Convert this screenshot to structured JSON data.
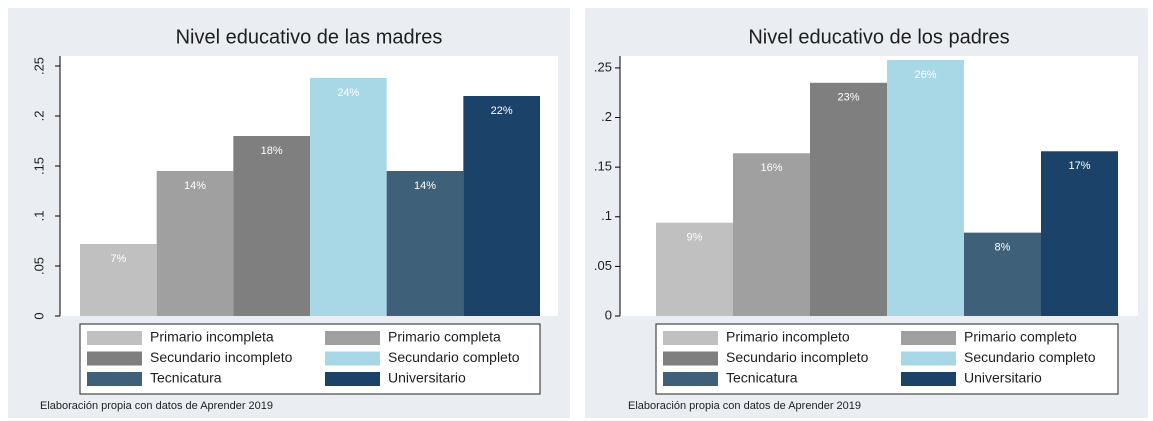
{
  "chart_data": [
    {
      "type": "bar",
      "title": "Nivel educativo de las madres",
      "categories": [
        "Primario incompleta",
        "Primario completa",
        "Secundario incompleto",
        "Secundario completo",
        "Tecnicatura",
        "Universitario"
      ],
      "values": [
        0.072,
        0.145,
        0.18,
        0.238,
        0.145,
        0.22
      ],
      "value_labels": [
        "7%",
        "14%",
        "18%",
        "24%",
        "14%",
        "22%"
      ],
      "colors": [
        "#c0c0c0",
        "#a0a0a0",
        "#7f7f7f",
        "#a8d8e6",
        "#3e6079",
        "#1b4269"
      ],
      "ylim": [
        0,
        0.26
      ],
      "yticks": [
        0,
        {
          "value": 0.05,
          "label": ".05"
        },
        {
          "value": 0.1,
          "label": ".1"
        },
        {
          "value": 0.15,
          "label": ".15"
        },
        {
          "value": 0.2,
          "label": ".2"
        },
        {
          "value": 0.25,
          "label": ".25"
        }
      ],
      "note": "Elaboración propia con datos de Aprender 2019"
    },
    {
      "type": "bar",
      "title": "Nivel educativo de los padres",
      "categories": [
        "Primario incompleto",
        "Primario completo",
        "Secundario incompleto",
        "Secundario completo",
        "Tecnicatura",
        "Universitario"
      ],
      "values": [
        0.094,
        0.164,
        0.235,
        0.258,
        0.084,
        0.166
      ],
      "value_labels": [
        "9%",
        "16%",
        "23%",
        "26%",
        "8%",
        "17%"
      ],
      "colors": [
        "#c0c0c0",
        "#a0a0a0",
        "#7f7f7f",
        "#a8d8e6",
        "#3e6079",
        "#1b4269"
      ],
      "ylim": [
        0,
        0.262
      ],
      "yticks": [
        0,
        {
          "value": 0.05,
          "label": ".05"
        },
        {
          "value": 0.1,
          "label": ".1"
        },
        {
          "value": 0.15,
          "label": ".15"
        },
        {
          "value": 0.2,
          "label": ".2"
        },
        {
          "value": 0.25,
          "label": ".25"
        }
      ],
      "note": "Elaboración propia con datos de Aprender 2019"
    }
  ]
}
